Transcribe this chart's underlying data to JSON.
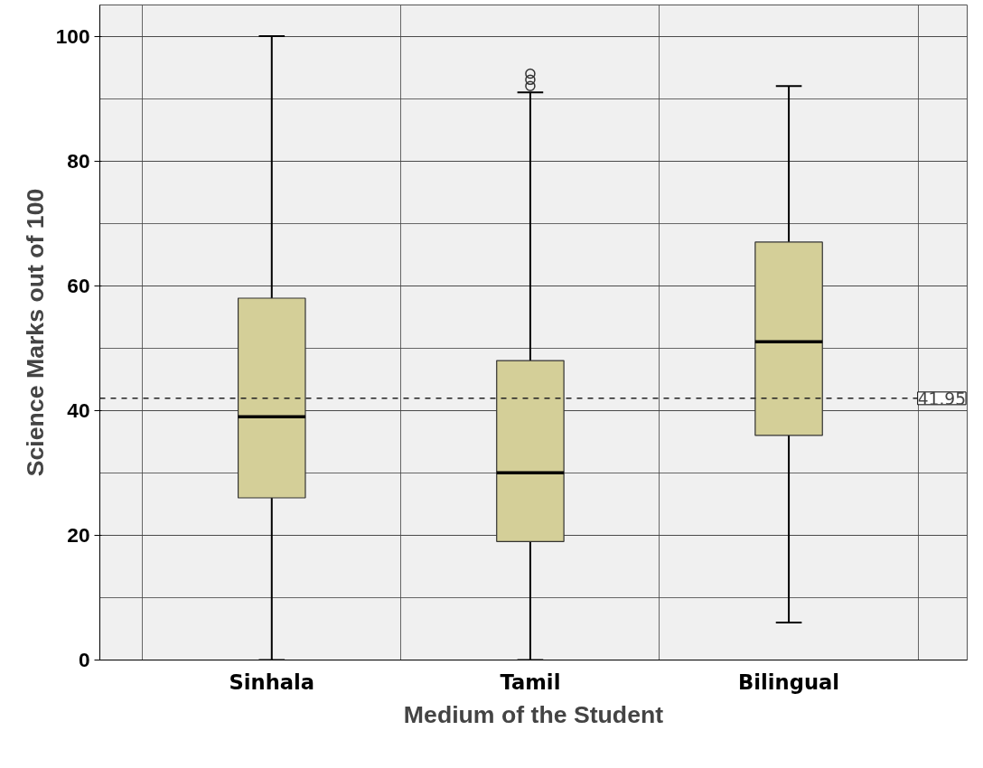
{
  "chart_data": {
    "type": "box",
    "xlabel": "Medium of the Student",
    "ylabel": "Science Marks out of 100",
    "categories": [
      "Sinhala",
      "Tamil",
      "Bilingual"
    ],
    "color": "#d4cf98",
    "boxes": [
      {
        "low": 0,
        "q1": 26,
        "median": 39,
        "q3": 58,
        "high": 100
      },
      {
        "low": 0,
        "q1": 19,
        "median": 30,
        "q3": 48,
        "high": 91,
        "outliers": [
          92,
          93,
          94
        ]
      },
      {
        "low": 6,
        "q1": 36,
        "median": 51,
        "q3": 67,
        "high": 92
      }
    ],
    "ylim": [
      0,
      105
    ],
    "yticks": [
      0,
      20,
      40,
      60,
      80,
      100
    ],
    "grid": true,
    "ref_lines": [
      {
        "axis": "y",
        "value": 41.95,
        "label": "41.95",
        "line_style": "dashed"
      }
    ]
  }
}
